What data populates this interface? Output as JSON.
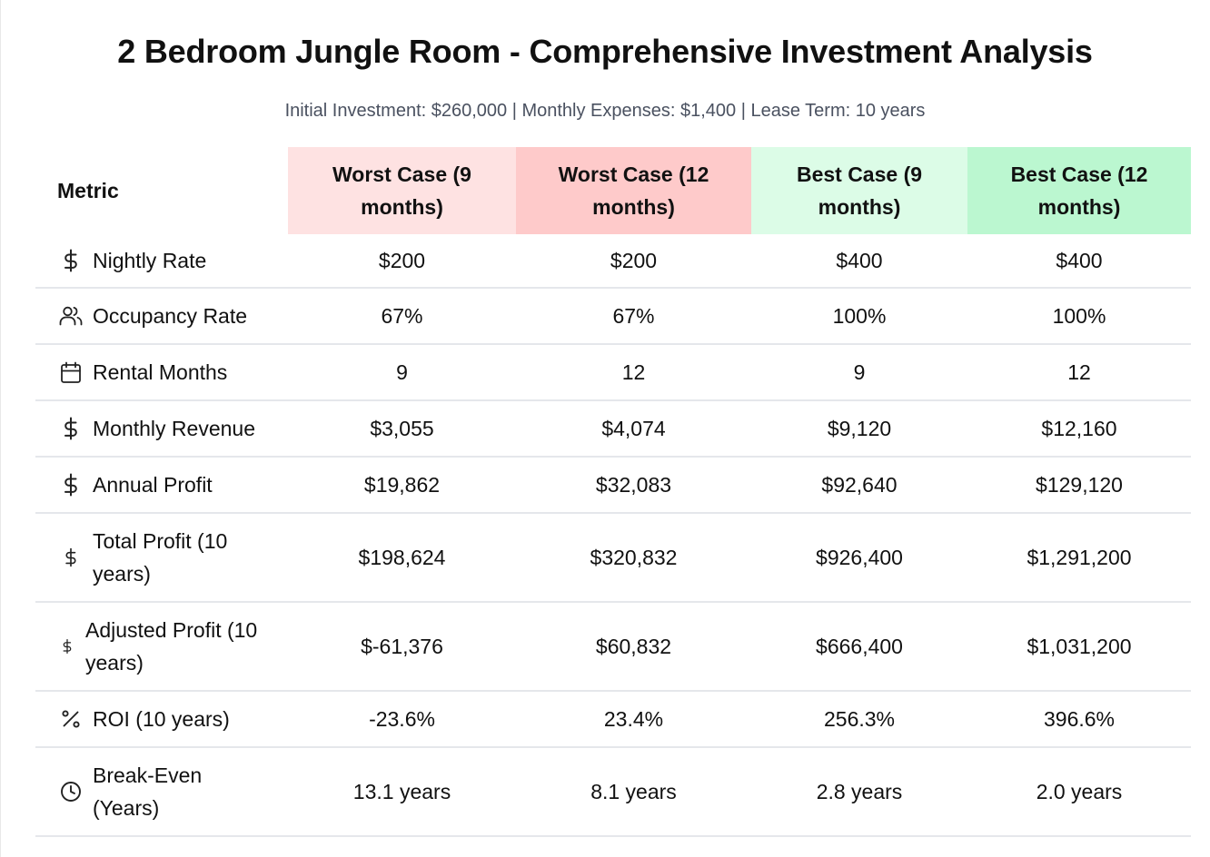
{
  "title": "2 Bedroom Jungle Room - Comprehensive Investment Analysis",
  "subtitle": "Initial Investment: $260,000 | Monthly Expenses: $1,400 | Lease Term: 10 years",
  "colors": {
    "worst_9": "#fee2e2",
    "worst_12": "#fecaca",
    "best_9": "#dcfce7",
    "best_12": "#bbf7d0"
  },
  "table": {
    "headers": {
      "metric": "Metric",
      "worst_9": "Worst Case (9 months)",
      "worst_12": "Worst Case (12 months)",
      "best_9": "Best Case (9 months)",
      "best_12": "Best Case (12 months)"
    },
    "rows": [
      {
        "icon": "dollar-icon",
        "label": "Nightly Rate",
        "values": [
          "$200",
          "$200",
          "$400",
          "$400"
        ]
      },
      {
        "icon": "users-icon",
        "label": "Occupancy Rate",
        "values": [
          "67%",
          "67%",
          "100%",
          "100%"
        ]
      },
      {
        "icon": "calendar-icon",
        "label": "Rental Months",
        "values": [
          "9",
          "12",
          "9",
          "12"
        ]
      },
      {
        "icon": "dollar-icon",
        "label": "Monthly Revenue",
        "values": [
          "$3,055",
          "$4,074",
          "$9,120",
          "$12,160"
        ]
      },
      {
        "icon": "dollar-icon",
        "label": "Annual Profit",
        "values": [
          "$19,862",
          "$32,083",
          "$92,640",
          "$129,120"
        ]
      },
      {
        "icon": "dollar-icon",
        "label": "Total Profit (10 years)",
        "values": [
          "$198,624",
          "$320,832",
          "$926,400",
          "$1,291,200"
        ]
      },
      {
        "icon": "dollar-icon",
        "label": "Adjusted Profit (10 years)",
        "values": [
          "$-61,376",
          "$60,832",
          "$666,400",
          "$1,031,200"
        ]
      },
      {
        "icon": "percent-icon",
        "label": "ROI (10 years)",
        "values": [
          "-23.6%",
          "23.4%",
          "256.3%",
          "396.6%"
        ]
      },
      {
        "icon": "clock-icon",
        "label": "Break-Even (Years)",
        "values": [
          "13.1 years",
          "8.1 years",
          "2.8 years",
          "2.0 years"
        ]
      }
    ]
  }
}
